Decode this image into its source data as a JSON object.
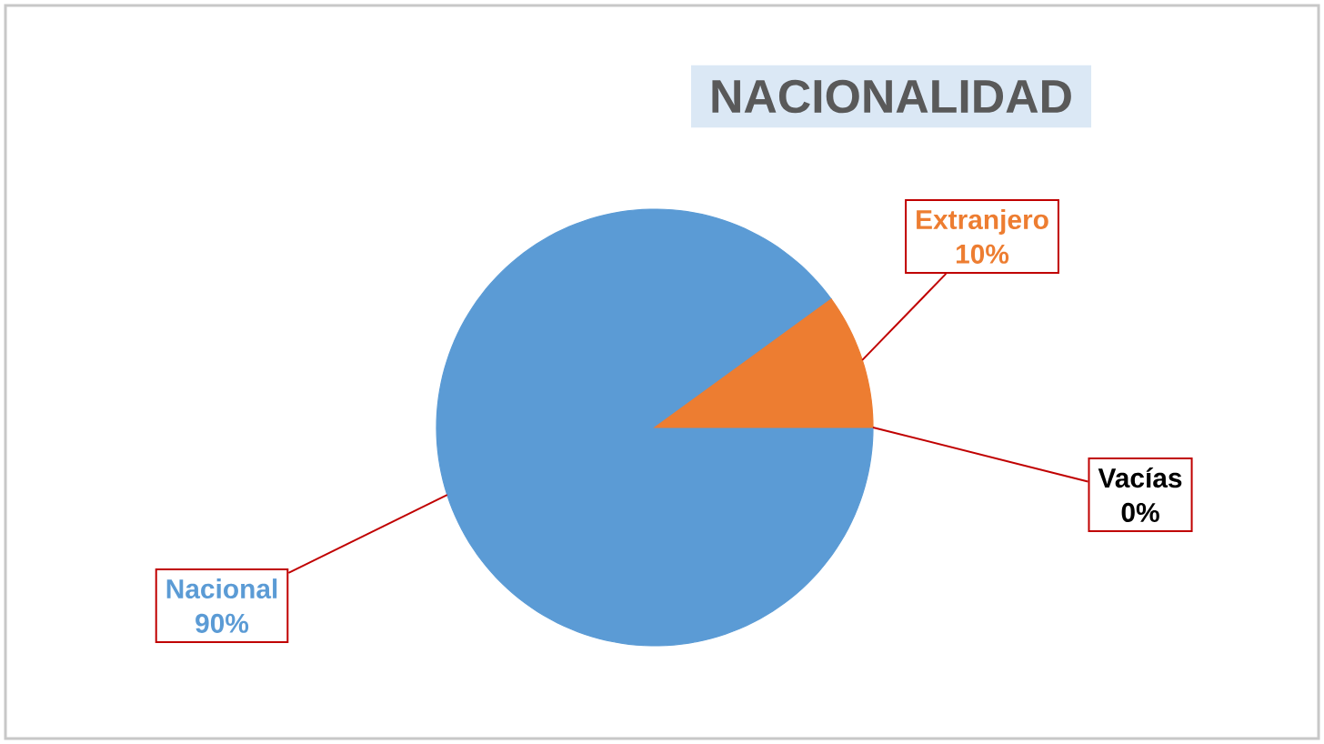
{
  "chart_data": {
    "type": "pie",
    "title": "NACIONALIDAD",
    "categories": [
      "Nacional",
      "Extranjero",
      "Vacías"
    ],
    "values": [
      90,
      10,
      0
    ],
    "value_labels": [
      "90%",
      "10%",
      "0%"
    ],
    "colors": [
      "#5b9bd5",
      "#ed7d31",
      "#000000"
    ]
  }
}
